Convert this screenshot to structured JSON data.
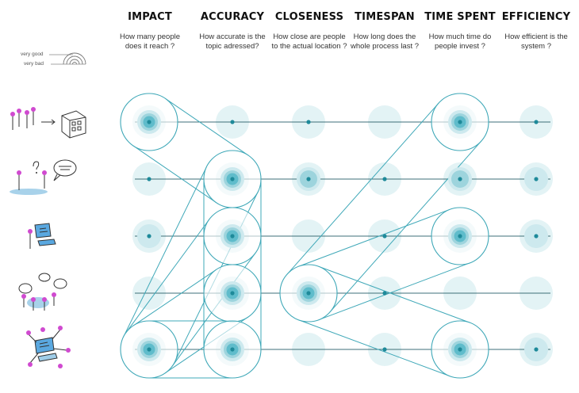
{
  "columns": [
    {
      "title": "IMPACT",
      "question": "How many people does it reach ?"
    },
    {
      "title": "ACCURACY",
      "question": "How accurate is the topic adressed?"
    },
    {
      "title": "CLOSENESS",
      "question": "How close are people to the actual location ?"
    },
    {
      "title": "TIMESPAN",
      "question": "How long does the whole process last ?"
    },
    {
      "title": "TIME SPENT",
      "question": "How much time do people invest ?"
    },
    {
      "title": "EFFICIENCY",
      "question": "How efficient is the system ?"
    }
  ],
  "legend": {
    "high_label": "very good",
    "low_label": "very bad"
  },
  "rows": [
    {
      "icon": "citizens-to-building-icon",
      "levels": [
        4,
        0,
        0,
        -1,
        4,
        0
      ]
    },
    {
      "icon": "question-speech-icon",
      "levels": [
        0,
        4,
        2,
        0,
        2,
        1
      ]
    },
    {
      "icon": "computer-user-icon",
      "levels": [
        1,
        4,
        -1,
        0,
        4,
        1
      ]
    },
    {
      "icon": "group-discussion-icon",
      "levels": [
        -1,
        4,
        4,
        0,
        -1,
        -1
      ]
    },
    {
      "icon": "network-screen-icon",
      "levels": [
        4,
        4,
        -1,
        0,
        4,
        1
      ]
    }
  ],
  "colors": {
    "accent": "#3fa8b8",
    "dot": "#1e8a9a",
    "line": "#3d6f78",
    "halo": "#e3f3f5",
    "icon_accent": "#d04ad0"
  }
}
